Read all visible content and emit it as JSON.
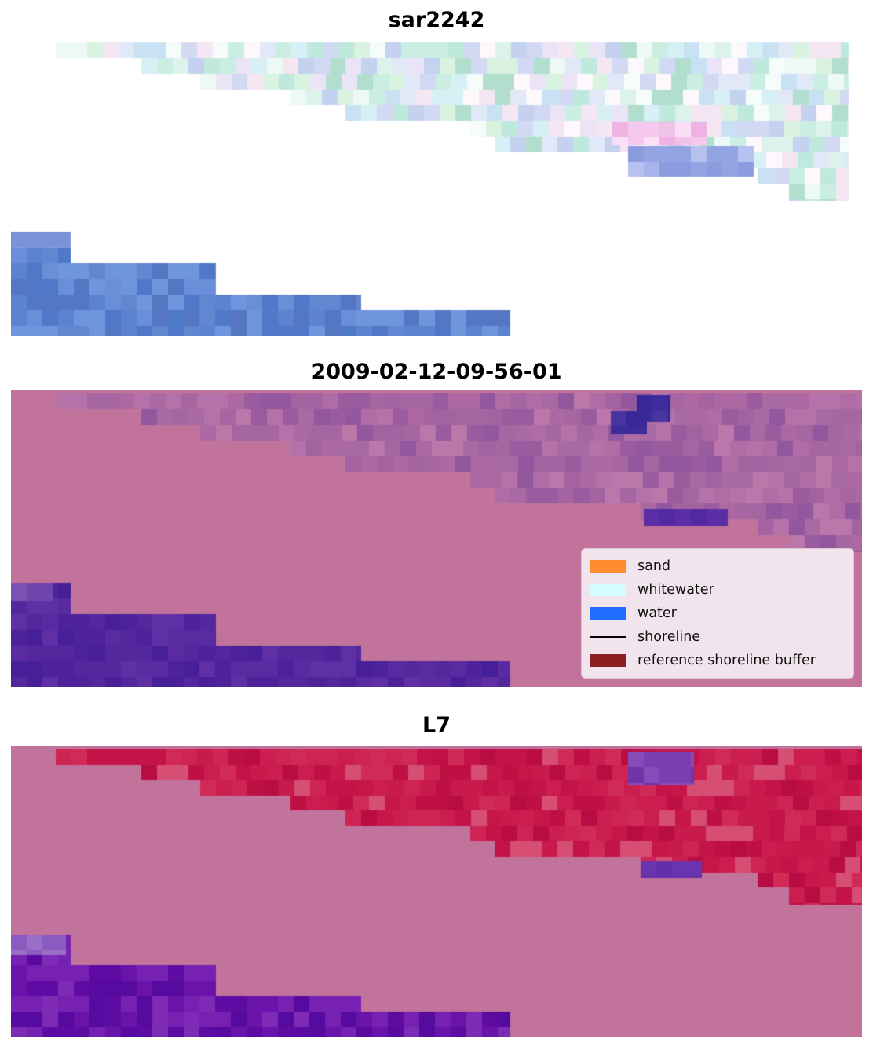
{
  "figure": {
    "panels": [
      {
        "id": "sar2242",
        "title": "sar2242",
        "paint": {
          "bg": "#ffffff",
          "cell": 20,
          "seed": 7,
          "regions": [
            {
              "palette": [
                "#edf9f4",
                "#dcf3ec",
                "#cbeee3",
                "#f6fcfa",
                "#c0e9dd",
                "#d7f0f5",
                "#c8e2f3",
                "#e1e9f8",
                "#d2d9f2",
                "#ebe4f7",
                "#f5e6f3",
                "#fdf8fc",
                "#b2dfcd",
                "#c4d2f0",
                "#daf2e0"
              ],
              "rows": [
                {
                  "x0": 0.053,
                  "x1": 0.984,
                  "y0": 0.01,
                  "y1": 0.064
                },
                {
                  "x0": 0.153,
                  "x1": 0.984,
                  "y0": 0.064,
                  "y1": 0.117
                },
                {
                  "x0": 0.222,
                  "x1": 0.984,
                  "y0": 0.117,
                  "y1": 0.17
                },
                {
                  "x0": 0.328,
                  "x1": 0.984,
                  "y0": 0.17,
                  "y1": 0.222
                },
                {
                  "x0": 0.393,
                  "x1": 0.984,
                  "y0": 0.222,
                  "y1": 0.275
                },
                {
                  "x0": 0.54,
                  "x1": 0.984,
                  "y0": 0.275,
                  "y1": 0.328
                },
                {
                  "x0": 0.568,
                  "x1": 0.984,
                  "y0": 0.328,
                  "y1": 0.381
                },
                {
                  "x0": 0.74,
                  "x1": 0.984,
                  "y0": 0.381,
                  "y1": 0.434
                },
                {
                  "x0": 0.877,
                  "x1": 0.984,
                  "y0": 0.434,
                  "y1": 0.487
                },
                {
                  "x0": 0.914,
                  "x1": 0.984,
                  "y0": 0.487,
                  "y1": 0.545
                }
              ]
            },
            {
              "palette": [
                "#f6c8ee",
                "#efb2e3",
                "#fbdff5",
                "#eec2e9"
              ],
              "rows": [
                {
                  "x0": 0.707,
                  "x1": 0.817,
                  "y0": 0.278,
                  "y1": 0.357
                }
              ]
            },
            {
              "palette": [
                "#93a4e3",
                "#a7b3ea",
                "#8c9bdf",
                "#b7c1f0"
              ],
              "rows": [
                {
                  "x0": 0.725,
                  "x1": 0.873,
                  "y0": 0.36,
                  "y1": 0.463
                }
              ]
            },
            {
              "palette": [
                "#5b83d0",
                "#4f78c8",
                "#6a8ed8",
                "#5577c3",
                "#6f96dc",
                "#6286cf"
              ],
              "rows": [
                {
                  "x0": 0.0,
                  "x1": 0.07,
                  "y0": 0.648,
                  "y1": 0.754
                },
                {
                  "x0": 0.0,
                  "x1": 0.241,
                  "y0": 0.754,
                  "y1": 0.86
                },
                {
                  "x0": 0.0,
                  "x1": 0.411,
                  "y0": 0.86,
                  "y1": 0.913
                },
                {
                  "x0": 0.0,
                  "x1": 0.587,
                  "y0": 0.913,
                  "y1": 1.0
                }
              ]
            },
            {
              "palette": [
                "#8ba0e0",
                "#7b93d8"
              ],
              "rows": [
                {
                  "x0": 0.0,
                  "x1": 0.07,
                  "y0": 0.648,
                  "y1": 0.705
                }
              ]
            }
          ]
        }
      },
      {
        "id": "classified",
        "title": "2009-02-12-09-56-01",
        "paint": {
          "bg": "#c1739c",
          "cell": 20,
          "seed": 11,
          "regions": [
            {
              "palette": [
                "#a96aa3",
                "#a263a0",
                "#b06ca5",
                "#9a5c9e",
                "#b572a8",
                "#a566a2",
                "#92579e",
                "#ad68a4",
                "#bb76aa"
              ],
              "rows": [
                {
                  "x0": 0.053,
                  "x1": 1.0,
                  "y0": 0.01,
                  "y1": 0.064
                },
                {
                  "x0": 0.153,
                  "x1": 1.0,
                  "y0": 0.064,
                  "y1": 0.117
                },
                {
                  "x0": 0.222,
                  "x1": 1.0,
                  "y0": 0.117,
                  "y1": 0.17
                },
                {
                  "x0": 0.328,
                  "x1": 1.0,
                  "y0": 0.17,
                  "y1": 0.222
                },
                {
                  "x0": 0.393,
                  "x1": 1.0,
                  "y0": 0.222,
                  "y1": 0.275
                },
                {
                  "x0": 0.54,
                  "x1": 1.0,
                  "y0": 0.275,
                  "y1": 0.328
                },
                {
                  "x0": 0.568,
                  "x1": 1.0,
                  "y0": 0.328,
                  "y1": 0.381
                },
                {
                  "x0": 0.74,
                  "x1": 1.0,
                  "y0": 0.381,
                  "y1": 0.434
                },
                {
                  "x0": 0.877,
                  "x1": 1.0,
                  "y0": 0.434,
                  "y1": 0.487
                },
                {
                  "x0": 0.914,
                  "x1": 1.0,
                  "y0": 0.487,
                  "y1": 0.545
                }
              ]
            },
            {
              "palette": [
                "#3e2c9d",
                "#4734a1",
                "#382796"
              ],
              "rows": [
                {
                  "x0": 0.735,
                  "x1": 0.775,
                  "y0": 0.016,
                  "y1": 0.105
                },
                {
                  "x0": 0.705,
                  "x1": 0.747,
                  "y0": 0.068,
                  "y1": 0.148
                }
              ]
            },
            {
              "palette": [
                "#5b2ea5",
                "#5329a0"
              ],
              "rows": [
                {
                  "x0": 0.744,
                  "x1": 0.842,
                  "y0": 0.4,
                  "y1": 0.458
                }
              ]
            },
            {
              "palette": [
                "#55279c",
                "#4d229a",
                "#5f2fa4",
                "#5a2ba0",
                "#471f99"
              ],
              "rows": [
                {
                  "x0": 0.0,
                  "x1": 0.07,
                  "y0": 0.648,
                  "y1": 0.754
                },
                {
                  "x0": 0.0,
                  "x1": 0.241,
                  "y0": 0.754,
                  "y1": 0.86
                },
                {
                  "x0": 0.0,
                  "x1": 0.411,
                  "y0": 0.86,
                  "y1": 0.913
                },
                {
                  "x0": 0.0,
                  "x1": 0.587,
                  "y0": 0.913,
                  "y1": 1.0
                }
              ]
            },
            {
              "palette": [
                "#6d45ac",
                "#7a52b3"
              ],
              "rows": [
                {
                  "x0": 0.0,
                  "x1": 0.05,
                  "y0": 0.648,
                  "y1": 0.71
                }
              ]
            }
          ]
        }
      },
      {
        "id": "l7",
        "title": "L7",
        "paint": {
          "bg": "#c1739c",
          "cell": 20,
          "seed": 13,
          "regions": [
            {
              "palette": [
                "#c31349",
                "#cb1d4f",
                "#b90c43",
                "#d02b57",
                "#c61748",
                "#ce2453",
                "#bf1045",
                "#c81a4c",
                "#d64e74"
              ],
              "rows": [
                {
                  "x0": 0.053,
                  "x1": 1.0,
                  "y0": 0.01,
                  "y1": 0.064
                },
                {
                  "x0": 0.153,
                  "x1": 1.0,
                  "y0": 0.064,
                  "y1": 0.117
                },
                {
                  "x0": 0.222,
                  "x1": 1.0,
                  "y0": 0.117,
                  "y1": 0.17
                },
                {
                  "x0": 0.328,
                  "x1": 1.0,
                  "y0": 0.17,
                  "y1": 0.222
                },
                {
                  "x0": 0.393,
                  "x1": 1.0,
                  "y0": 0.222,
                  "y1": 0.275
                },
                {
                  "x0": 0.54,
                  "x1": 1.0,
                  "y0": 0.275,
                  "y1": 0.328
                },
                {
                  "x0": 0.568,
                  "x1": 1.0,
                  "y0": 0.328,
                  "y1": 0.381
                },
                {
                  "x0": 0.74,
                  "x1": 1.0,
                  "y0": 0.381,
                  "y1": 0.434
                },
                {
                  "x0": 0.877,
                  "x1": 1.0,
                  "y0": 0.434,
                  "y1": 0.487
                },
                {
                  "x0": 0.914,
                  "x1": 1.0,
                  "y0": 0.487,
                  "y1": 0.545
                }
              ]
            },
            {
              "palette": [
                "#7b3eb0",
                "#8a4bba",
                "#6f34a8"
              ],
              "rows": [
                {
                  "x0": 0.725,
                  "x1": 0.803,
                  "y0": 0.018,
                  "y1": 0.135
                }
              ]
            },
            {
              "palette": [
                "#6a34ae",
                "#6130a8"
              ],
              "rows": [
                {
                  "x0": 0.74,
                  "x1": 0.812,
                  "y0": 0.395,
                  "y1": 0.455
                }
              ]
            },
            {
              "palette": [
                "#6a13ab",
                "#5e0ba4",
                "#7721b2",
                "#560a9f",
                "#7d2bb5"
              ],
              "rows": [
                {
                  "x0": 0.0,
                  "x1": 0.07,
                  "y0": 0.648,
                  "y1": 0.754
                },
                {
                  "x0": 0.0,
                  "x1": 0.241,
                  "y0": 0.754,
                  "y1": 0.86
                },
                {
                  "x0": 0.0,
                  "x1": 0.411,
                  "y0": 0.86,
                  "y1": 0.913
                },
                {
                  "x0": 0.0,
                  "x1": 0.587,
                  "y0": 0.913,
                  "y1": 1.0
                }
              ]
            },
            {
              "palette": [
                "#9a6fc6",
                "#8a5bc0"
              ],
              "rows": [
                {
                  "x0": 0.0,
                  "x1": 0.065,
                  "y0": 0.648,
                  "y1": 0.72
                }
              ]
            }
          ]
        }
      }
    ],
    "legend": {
      "background": "#f2e4ec",
      "entries": [
        {
          "label": "sand",
          "color": "#ff8c2e",
          "type": "patch"
        },
        {
          "label": "whitewater",
          "color": "#d5fdff",
          "type": "patch"
        },
        {
          "label": "water",
          "color": "#1f6eff",
          "type": "patch"
        },
        {
          "label": "shoreline",
          "color": "#000000",
          "type": "line"
        },
        {
          "label": "reference shoreline buffer",
          "color": "#8b1f1f",
          "type": "patch"
        }
      ]
    }
  },
  "chart_data": [
    {
      "type": "heatmap",
      "title": "sar2242",
      "description": "Pixelated SAR-derived satellite tile on white background: pastel green/cyan/lavender/pink mosaic forming a staircase band descending from upper-left to lower-right, plus a cornflower-blue water patch in a lower-left staircase",
      "legend_position": "none",
      "grid": "off"
    },
    {
      "type": "heatmap",
      "title": "2009-02-12-09-56-01",
      "classes": [
        "sand",
        "whitewater",
        "water",
        "shoreline",
        "reference shoreline buffer"
      ],
      "class_colors": {
        "sand": "#ff8c2e",
        "whitewater": "#d5fdff",
        "water": "#1f6eff",
        "shoreline": "#000000",
        "reference shoreline buffer": "#8b1f1f"
      },
      "description": "Classification overlay: mauve background, darker purplish-mauve upper-right staircase band, small indigo water patches in upper right, purple water region in lower-left staircase; legend box in lower right",
      "legend_position": "lower right",
      "grid": "off"
    },
    {
      "type": "heatmap",
      "title": "L7",
      "description": "Landsat-7 overlay: crimson upper-right staircase band over mauve background, small purple patches in upper right, purple water region in lower-left staircase",
      "legend_position": "none",
      "grid": "off"
    }
  ]
}
